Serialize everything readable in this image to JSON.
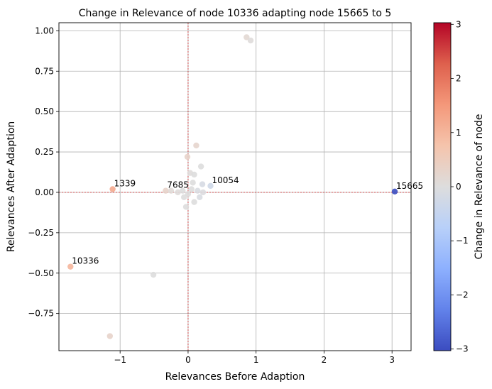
{
  "chart_data": {
    "type": "scatter",
    "title": "Change in Relevance of node 10336 adapting node 15665 to 5",
    "xlabel": "Relevances Before Adaption",
    "ylabel": "Relevances After Adaption",
    "xlim": [
      -1.9,
      3.28
    ],
    "ylim": [
      -0.98,
      1.05
    ],
    "x_ticks": [
      -1,
      0,
      1,
      2,
      3
    ],
    "y_ticks": [
      -0.75,
      -0.5,
      -0.25,
      0.0,
      0.25,
      0.5,
      0.75,
      1.0
    ],
    "x_tick_labels": [
      "−1",
      "0",
      "1",
      "2",
      "3"
    ],
    "y_tick_labels": [
      "−0.75",
      "−0.50",
      "−0.25",
      "0.00",
      "0.25",
      "0.50",
      "0.75",
      "1.00"
    ],
    "grid": true,
    "reference_lines": {
      "x": 0,
      "y": 0,
      "color": "#d62728",
      "style": "dashed"
    },
    "colorbar": {
      "label": "Change in Relevance of node",
      "range": [
        -3.03,
        3.03
      ],
      "ticks": [
        -3,
        -2,
        -1,
        0,
        1,
        2,
        3
      ],
      "tick_labels": [
        "−3",
        "−2",
        "−1",
        "0",
        "1",
        "2",
        "3"
      ],
      "colormap": "coolwarm"
    },
    "points": [
      {
        "x": 0.86,
        "y": 0.96,
        "c": 0.15
      },
      {
        "x": 0.92,
        "y": 0.94,
        "c": 0.05
      },
      {
        "x": 0.12,
        "y": 0.29,
        "c": 0.25
      },
      {
        "x": -0.01,
        "y": 0.22,
        "c": 0.3
      },
      {
        "x": 0.19,
        "y": 0.16,
        "c": 0.0
      },
      {
        "x": 0.03,
        "y": 0.12,
        "c": 0.05
      },
      {
        "x": 0.09,
        "y": 0.11,
        "c": 0.0
      },
      {
        "x": 0.21,
        "y": 0.05,
        "c": -0.15
      },
      {
        "x": 0.33,
        "y": 0.04,
        "c": -0.3
      },
      {
        "x": 0.07,
        "y": 0.06,
        "c": 0.0
      },
      {
        "x": -0.33,
        "y": 0.01,
        "c": 0.3
      },
      {
        "x": -0.25,
        "y": 0.01,
        "c": 0.1
      },
      {
        "x": -0.15,
        "y": 0.0,
        "c": 0.05
      },
      {
        "x": -0.08,
        "y": 0.01,
        "c": 0.0
      },
      {
        "x": -0.06,
        "y": -0.03,
        "c": 0.0
      },
      {
        "x": 0.0,
        "y": -0.01,
        "c": 0.0
      },
      {
        "x": 0.05,
        "y": 0.02,
        "c": 0.0
      },
      {
        "x": 0.14,
        "y": 0.01,
        "c": -0.1
      },
      {
        "x": 0.17,
        "y": -0.03,
        "c": -0.1
      },
      {
        "x": 0.22,
        "y": 0.0,
        "c": -0.05
      },
      {
        "x": -0.03,
        "y": -0.09,
        "c": 0.0
      },
      {
        "x": 0.09,
        "y": -0.06,
        "c": 0.0
      },
      {
        "x": -1.11,
        "y": 0.02,
        "c": 1.2
      },
      {
        "x": -1.73,
        "y": -0.46,
        "c": 1.0
      },
      {
        "x": -0.51,
        "y": -0.51,
        "c": 0.0
      },
      {
        "x": -1.15,
        "y": -0.89,
        "c": 0.3
      },
      {
        "x": 3.04,
        "y": 0.005,
        "c": -3.03
      }
    ],
    "annotations": [
      {
        "text": "1339",
        "x": -1.11,
        "y": 0.02
      },
      {
        "text": "7685",
        "x": -0.33,
        "y": 0.01
      },
      {
        "text": "10054",
        "x": 0.33,
        "y": 0.04
      },
      {
        "text": "15665",
        "x": 3.04,
        "y": 0.005
      },
      {
        "text": "10336",
        "x": -1.73,
        "y": -0.46
      }
    ]
  }
}
